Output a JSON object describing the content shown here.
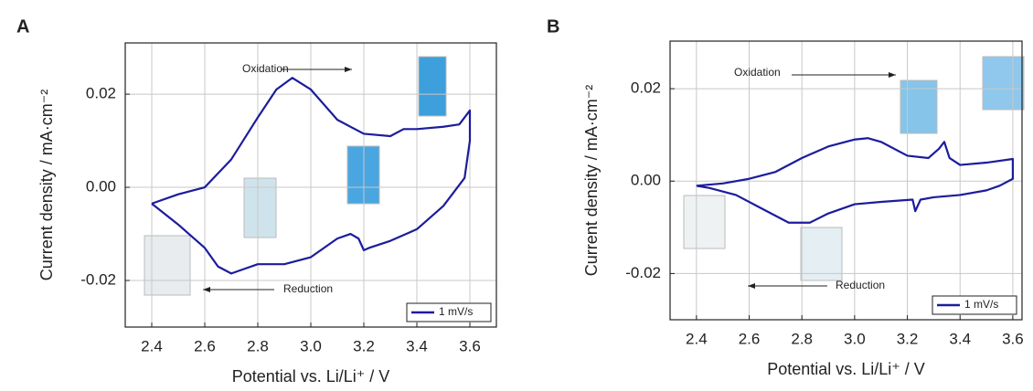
{
  "chart_data": [
    {
      "type": "line",
      "panel_label": "A",
      "x_label": "Potential vs. Li/Li⁺ / V",
      "y_label": "Current density / mA·cm⁻²",
      "annotations": [
        "Oxidation",
        "Reduction"
      ],
      "xlim": [
        2.3,
        3.7
      ],
      "ylim": [
        -0.03,
        0.031
      ],
      "xticks": [
        2.4,
        2.6,
        2.8,
        {
          "value": 3,
          "label": "3.0"
        },
        3.2,
        3.4,
        3.6
      ],
      "yticks": [
        -0.02,
        {
          "value": 0,
          "label": "0.00"
        },
        0.02
      ],
      "grid": true,
      "legend": "lower right",
      "series": [
        {
          "name": "1 mV/s",
          "color": "#1c1c9c",
          "x": [
            2.4,
            2.5,
            2.6,
            2.7,
            2.8,
            2.87,
            2.93,
            3.0,
            3.1,
            3.2,
            3.3,
            3.35,
            3.4,
            3.5,
            3.56,
            3.6,
            3.6,
            3.58,
            3.5,
            3.4,
            3.3,
            3.22,
            3.2,
            3.18,
            3.15,
            3.1,
            3.0,
            2.9,
            2.8,
            2.75,
            2.7,
            2.65,
            2.6,
            2.5,
            2.4
          ],
          "values": [
            -0.0035,
            -0.0015,
            0.0,
            0.006,
            0.015,
            0.021,
            0.0235,
            0.021,
            0.0145,
            0.0115,
            0.011,
            0.0125,
            0.0125,
            0.013,
            0.0135,
            0.0165,
            0.01,
            0.002,
            -0.004,
            -0.009,
            -0.0115,
            -0.013,
            -0.0135,
            -0.011,
            -0.01,
            -0.011,
            -0.015,
            -0.0165,
            -0.0165,
            -0.0175,
            -0.0185,
            -0.017,
            -0.013,
            -0.008,
            -0.0035
          ]
        }
      ]
    },
    {
      "type": "line",
      "panel_label": "B",
      "x_label": "Potential vs. Li/Li⁺ / V",
      "y_label": "Current density / mA·cm⁻²",
      "annotations": [
        "Oxidation",
        "Reduction"
      ],
      "xlim": [
        2.3,
        3.635
      ],
      "ylim": [
        -0.03,
        0.0303
      ],
      "xticks": [
        2.4,
        2.6,
        2.8,
        {
          "value": 3,
          "label": "3.0"
        },
        3.2,
        3.4,
        3.6
      ],
      "yticks": [
        -0.02,
        {
          "value": 0,
          "label": "0.00"
        },
        0.02
      ],
      "grid": true,
      "legend": "lower right",
      "series": [
        {
          "name": "1 mV/s",
          "color": "#1c1c9c",
          "x": [
            2.4,
            2.5,
            2.6,
            2.7,
            2.8,
            2.9,
            3.0,
            3.05,
            3.1,
            3.2,
            3.28,
            3.32,
            3.34,
            3.36,
            3.4,
            3.5,
            3.6,
            3.6,
            3.55,
            3.5,
            3.4,
            3.3,
            3.25,
            3.23,
            3.22,
            3.1,
            3.0,
            2.9,
            2.83,
            2.75,
            2.65,
            2.55,
            2.45,
            2.4
          ],
          "values": [
            -0.001,
            -0.0005,
            0.0005,
            0.002,
            0.005,
            0.0075,
            0.009,
            0.0093,
            0.0085,
            0.0055,
            0.005,
            0.007,
            0.0085,
            0.005,
            0.0035,
            0.004,
            0.0048,
            0.0005,
            -0.001,
            -0.002,
            -0.003,
            -0.0035,
            -0.004,
            -0.0065,
            -0.004,
            -0.0045,
            -0.005,
            -0.007,
            -0.009,
            -0.009,
            -0.006,
            -0.003,
            -0.0015,
            -0.001
          ]
        }
      ]
    }
  ]
}
